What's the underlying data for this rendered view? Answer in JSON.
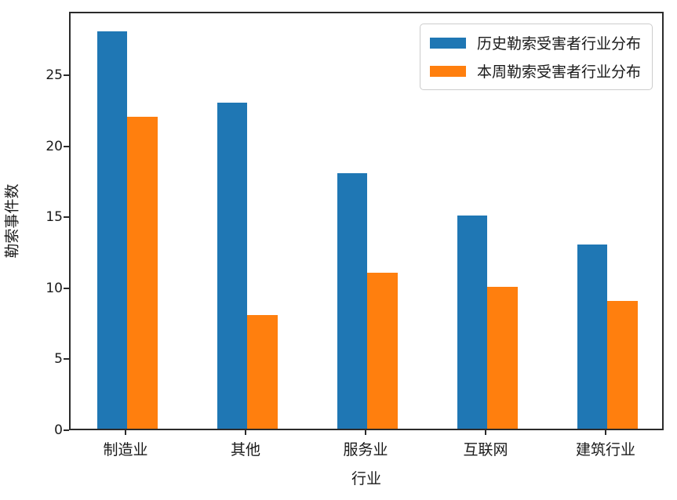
{
  "chart_data": {
    "type": "bar",
    "title": "",
    "categories": [
      "制造业",
      "其他",
      "服务业",
      "互联网",
      "建筑行业"
    ],
    "series": [
      {
        "name": "历史勒索受害者行业分布",
        "color": "#1f77b4",
        "values": [
          28,
          23,
          18,
          15,
          13
        ]
      },
      {
        "name": "本周勒索受害者行业分布",
        "color": "#ff7f0e",
        "values": [
          22,
          8,
          11,
          10,
          9
        ]
      }
    ],
    "xlabel": "行业",
    "ylabel": "勒索事件数",
    "yticks": [
      0,
      5,
      10,
      15,
      20,
      25
    ],
    "ylim": [
      0,
      29.5
    ],
    "grid": false,
    "legend_position": "upper right",
    "frame": "box",
    "spine_color": "#2b2b2b",
    "background_color": "#ffffff"
  }
}
